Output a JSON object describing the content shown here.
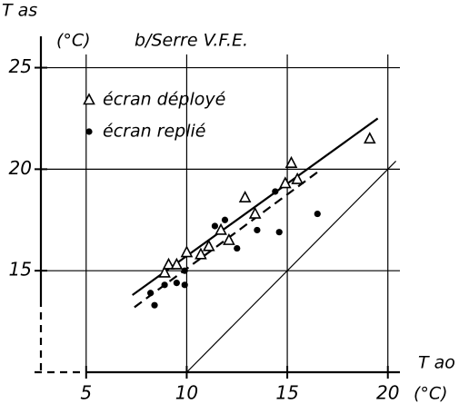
{
  "chart_data": {
    "type": "scatter",
    "title": "b/Serre V.F.E.",
    "y_label": "T as",
    "y_unit": "(°C)",
    "x_label": "T ao",
    "x_unit": "(°C)",
    "xlim": [
      2.75,
      20.6
    ],
    "ylim": [
      10,
      26.5
    ],
    "xticks": [
      5,
      10,
      15,
      20
    ],
    "yticks": [
      15,
      20,
      25
    ],
    "grid": true,
    "series": [
      {
        "name": "écran déployé",
        "marker": "triangle",
        "color": "#000",
        "x": [
          8.9,
          9.1,
          9.5,
          10.0,
          10.7,
          11.1,
          11.7,
          12.1,
          12.9,
          13.4,
          14.9,
          15.2,
          15.5,
          19.1
        ],
        "values": [
          14.9,
          15.3,
          15.3,
          15.9,
          15.8,
          16.2,
          17.0,
          16.5,
          18.6,
          17.8,
          19.3,
          20.3,
          19.5,
          21.5
        ]
      },
      {
        "name": "écran replié",
        "marker": "dot",
        "color": "#000",
        "x": [
          8.2,
          8.4,
          8.9,
          9.5,
          9.9,
          9.9,
          11.4,
          11.9,
          12.5,
          13.5,
          14.4,
          14.6,
          16.5
        ],
        "values": [
          13.9,
          13.3,
          14.3,
          14.4,
          15.0,
          14.3,
          17.2,
          17.5,
          16.1,
          17.0,
          18.9,
          16.9,
          17.8
        ]
      }
    ],
    "lines": [
      {
        "style": "solid",
        "width": 2.2,
        "x": [
          7.3,
          19.5
        ],
        "values": [
          13.8,
          22.5
        ]
      },
      {
        "style": "dashed",
        "width": 2.2,
        "x": [
          7.4,
          16.7
        ],
        "values": [
          13.2,
          20.0
        ]
      },
      {
        "style": "solid",
        "width": 1.2,
        "x": [
          10,
          20.4
        ],
        "values": [
          10,
          20.4
        ]
      }
    ]
  }
}
